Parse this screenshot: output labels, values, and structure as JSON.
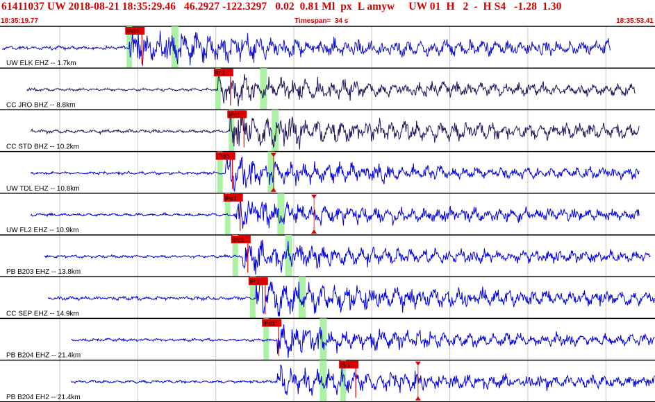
{
  "header": {
    "title": "61411037 UW 2018-08-21 18:35:29.46   46.2927 -122.3297   0.02  0.81 Ml  px  L amyw     UW 01  H   2  -  H S4   -1.28  1.30",
    "start_time": "18:35:19.77",
    "timespan": "Timespan=  34 s",
    "end_time": "18:35:53.41"
  },
  "colors": {
    "trace_blue": "#0000e0",
    "trace_navy": "#20145a",
    "pick_red": "#e00000",
    "window_green": "#a8f0a0",
    "grid": "#000000"
  },
  "chart_data": {
    "type": "line",
    "title": "61411037 UW 2018-08-21 18:35:29.46",
    "xlabel": "",
    "ylabel": "",
    "x_range_s": [
      0,
      34
    ],
    "panels": [
      {
        "label": "UW ELK EHZ -- 1.7km",
        "color": "navy_blue",
        "start_s": 0.1,
        "end_s": 31.7,
        "onset_s": 6.7,
        "amplitude": "high",
        "pick": {
          "text": "iPd0",
          "t_s": 6.5
        },
        "arrival_marker_s": null
      },
      {
        "label": "CC JRO BHZ -- 8.8km",
        "color": "navy",
        "start_s": 1.4,
        "end_s": 33.0,
        "onset_s": 11.3,
        "amplitude": "medium",
        "pick": {
          "text": "iP 1",
          "t_s": 11.1
        },
        "arrival_marker_s": null
      },
      {
        "label": "CC STD BHZ -- 10.2km",
        "color": "navy",
        "start_s": 1.6,
        "end_s": 33.2,
        "onset_s": 11.9,
        "amplitude": "high",
        "pick": {
          "text": "iPc1",
          "t_s": 11.8
        },
        "arrival_marker_s": null
      },
      {
        "label": "UW TDL EHZ -- 10.8km",
        "color": "blue",
        "start_s": 1.6,
        "end_s": 33.2,
        "onset_s": 11.7,
        "amplitude": "medium",
        "pick": {
          "text": "iPd0",
          "t_s": 11.2
        },
        "arrival_marker_s": 14.2
      },
      {
        "label": "UW FL2 EHZ -- 10.9km",
        "color": "blue",
        "start_s": 1.6,
        "end_s": 33.2,
        "onset_s": 12.2,
        "amplitude": "medium",
        "pick": {
          "text": "iPd1",
          "t_s": 11.6
        },
        "arrival_marker_s": 16.3
      },
      {
        "label": "PB B203 EHZ -- 13.8km",
        "color": "blue",
        "start_s": 2.3,
        "end_s": 33.8,
        "onset_s": 12.6,
        "amplitude": "medium",
        "pick": {
          "text": "iPc1",
          "t_s": 12.0
        },
        "arrival_marker_s": null
      },
      {
        "label": "CC SEP EHZ -- 14.9km",
        "color": "blue",
        "start_s": 2.5,
        "end_s": 34.0,
        "onset_s": 13.3,
        "amplitude": "high",
        "pick": {
          "text": "iP 1",
          "t_s": 12.9
        },
        "arrival_marker_s": null
      },
      {
        "label": "PB B204 EHZ -- 21.4km",
        "color": "blue",
        "start_s": 3.7,
        "end_s": 34.0,
        "onset_s": 14.4,
        "amplitude": "medium",
        "pick": {
          "text": "iPd1",
          "t_s": 13.6
        },
        "arrival_marker_s": null
      },
      {
        "label": "PB B204 EH2 -- 21.4km",
        "color": "blue",
        "start_s": 3.7,
        "end_s": 34.0,
        "onset_s": 14.4,
        "amplitude": "medium",
        "pick": {
          "text": "iS 1",
          "t_s": 17.6
        },
        "arrival_marker_s": 21.7
      }
    ],
    "grid": true,
    "legend": "none"
  }
}
